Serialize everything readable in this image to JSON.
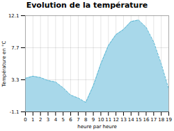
{
  "chart_data": {
    "type": "area",
    "title": "Evolution de la température",
    "xlabel": "heure par heure",
    "ylabel": "Température en °C",
    "x": [
      0,
      1,
      2,
      3,
      4,
      5,
      6,
      7,
      8,
      9,
      10,
      11,
      12,
      13,
      14,
      15,
      16,
      17,
      18,
      19
    ],
    "values": [
      3.5,
      3.8,
      3.6,
      3.2,
      3.0,
      2.2,
      1.2,
      0.8,
      0.2,
      2.5,
      5.5,
      8.0,
      9.5,
      10.2,
      11.3,
      11.5,
      10.5,
      8.5,
      5.5,
      2.0
    ],
    "colors": [
      "#a8d8ea",
      "#5bb8d4"
    ],
    "line_style": "dashed",
    "xlim": [
      0,
      19
    ],
    "xticks": [
      0,
      1,
      2,
      3,
      4,
      5,
      6,
      7,
      8,
      9,
      10,
      11,
      12,
      13,
      14,
      15,
      16,
      17,
      18,
      19
    ],
    "ylim": [
      -1.1,
      12.1
    ],
    "yticks": [
      -1.1,
      3.3,
      7.7,
      12.1
    ],
    "grid": true
  }
}
